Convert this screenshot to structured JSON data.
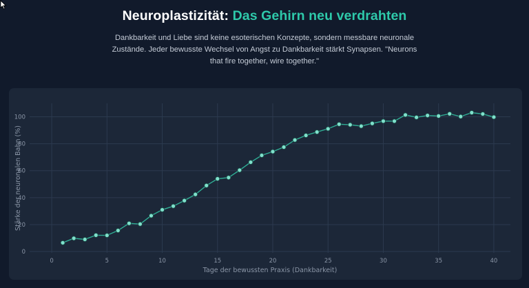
{
  "header": {
    "title_main": "Neuroplastizität:",
    "title_accent": "Das Gehirn neu verdrahten",
    "subtitle": "Dankbarkeit und Liebe sind keine esoterischen Konzepte, sondern messbare neuronale Zustände. Jeder bewusste Wechsel von Angst zu Dankbarkeit stärkt Synapsen. \"Neurons that fire together, wire together.\""
  },
  "colors": {
    "background": "#111a2b",
    "card": "#1c2738",
    "accent": "#2ec9aa",
    "line": "#2fae95",
    "marker_fill": "#7fe0cc",
    "grid": "#2c3a4f"
  },
  "chart_data": {
    "type": "line",
    "xlabel": "Tage der bewussten Praxis (Dankbarkeit)",
    "ylabel": "Stärke der neuronalen Bahn (%)",
    "xlim": [
      -2,
      41.5
    ],
    "ylim": [
      -1,
      110
    ],
    "xticks": [
      0,
      5,
      10,
      15,
      20,
      25,
      30,
      35,
      40
    ],
    "yticks": [
      0,
      20,
      40,
      60,
      80,
      100
    ],
    "grid": true,
    "x": [
      1,
      2,
      3,
      4,
      5,
      6,
      7,
      8,
      9,
      10,
      11,
      12,
      13,
      14,
      15,
      16,
      17,
      18,
      19,
      20,
      21,
      22,
      23,
      24,
      25,
      26,
      27,
      28,
      29,
      30,
      31,
      32,
      33,
      34,
      35,
      36,
      37,
      38,
      39,
      40
    ],
    "y": [
      6.5,
      9.8,
      9,
      12.1,
      12,
      15.6,
      20.9,
      20.4,
      26.6,
      31,
      33.7,
      37.8,
      42.4,
      49,
      54,
      54.9,
      60.4,
      66.3,
      71.4,
      74.2,
      77.5,
      82.8,
      86.2,
      88.7,
      91.1,
      94.5,
      94.1,
      93.1,
      95.1,
      96.8,
      96.8,
      101.4,
      99.6,
      101,
      100.6,
      102.2,
      100.2,
      103.1,
      102.1,
      99.8
    ]
  }
}
